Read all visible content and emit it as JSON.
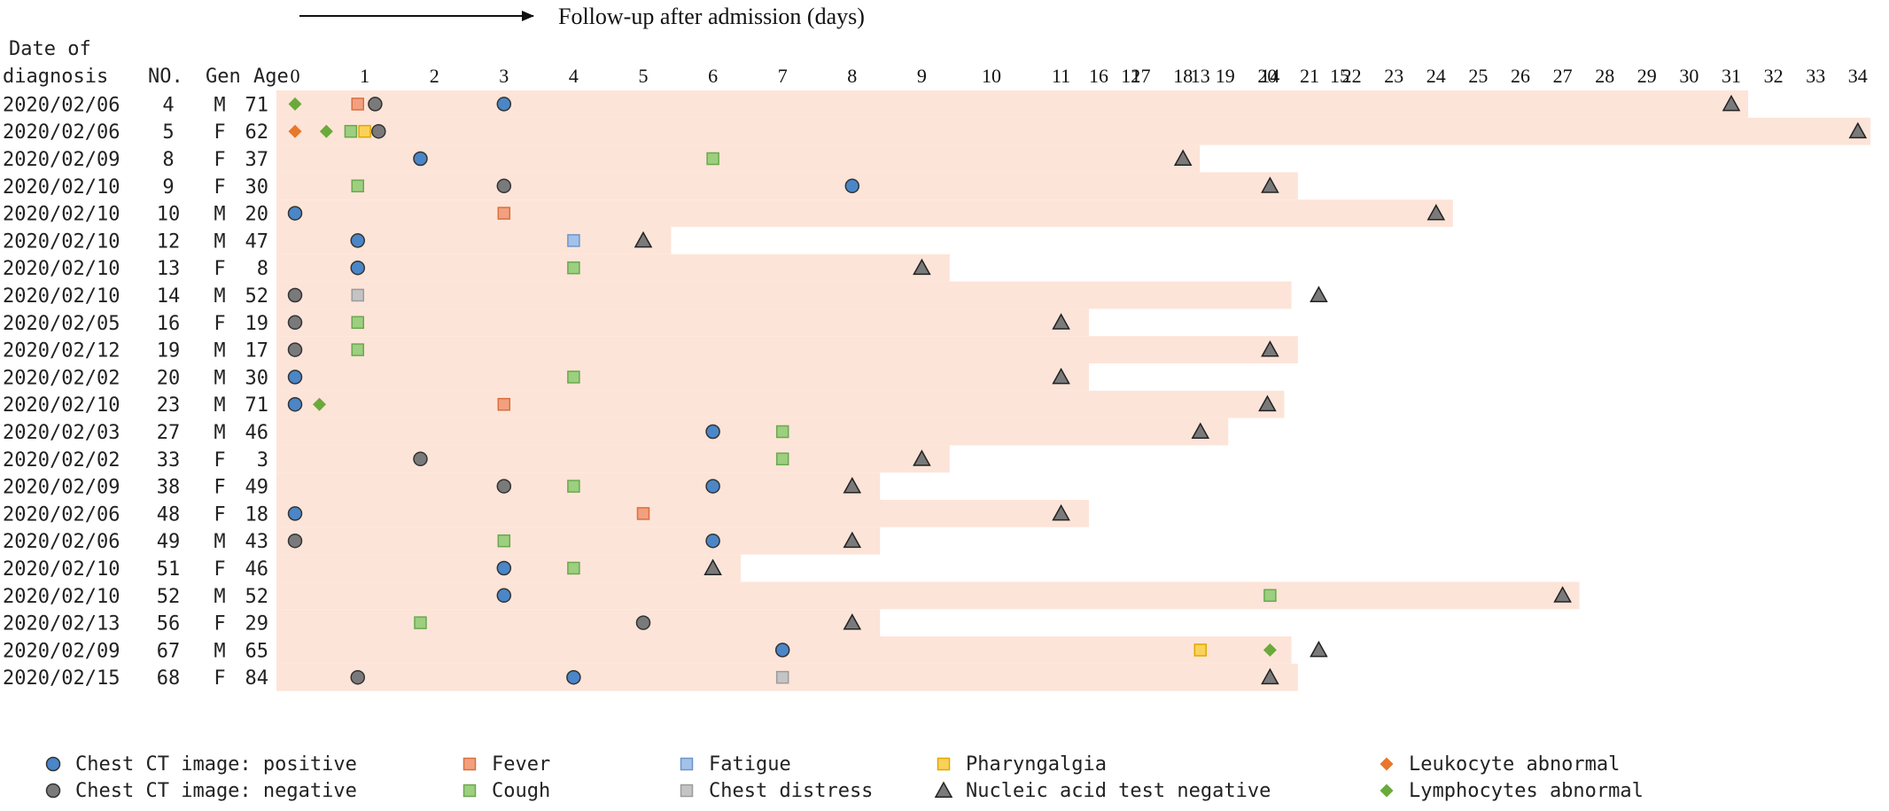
{
  "chart_data": {
    "type": "timeline",
    "title": "Follow-up after admission (days)",
    "header": {
      "date_line1": "Date of",
      "date_line2": "diagnosis",
      "no": "NO.",
      "gen": "Gen",
      "age": "Age"
    },
    "x_ticks": [
      "0",
      "1",
      "2",
      "3",
      "4",
      "5",
      "6",
      "7",
      "8",
      "9",
      "10",
      "11",
      "12",
      "13",
      "14",
      "15",
      "16",
      "17",
      "18",
      "19",
      "20",
      "21",
      "22",
      "23",
      "24",
      "25",
      "26",
      "27",
      "28",
      "29",
      "30",
      "31",
      "32",
      "33",
      "34"
    ],
    "x_range": [
      0,
      34
    ],
    "colors": {
      "band": "#fde4d8",
      "ct_positive": "#4a86c8",
      "ct_negative": "#7a7a7a",
      "fever": "#f2a07f",
      "fatigue": "#a4c2e8",
      "pharyngalgia": "#fad25a",
      "cough": "#9ccf7f",
      "chest_distress": "#c4c4c4",
      "nucleic_negative": "#7a7a7a",
      "leukocyte": "#e8762b",
      "lymphocytes": "#6aaa3a"
    },
    "patients": [
      {
        "date": "2020/02/06",
        "no": "4",
        "gen": "M",
        "age": "71",
        "end": 31.4,
        "events": [
          {
            "type": "lymphocytes",
            "day": 0
          },
          {
            "type": "fever",
            "day": 0.9
          },
          {
            "type": "ct_negative",
            "day": 1.15
          },
          {
            "type": "ct_positive",
            "day": 3
          },
          {
            "type": "nucleic_negative",
            "day": 31
          }
        ]
      },
      {
        "date": "2020/02/06",
        "no": "5",
        "gen": "F",
        "age": "62",
        "end": 34.3,
        "events": [
          {
            "type": "leukocyte",
            "day": 0
          },
          {
            "type": "lymphocytes",
            "day": 0.45
          },
          {
            "type": "cough",
            "day": 0.8
          },
          {
            "type": "pharyngalgia",
            "day": 1.0
          },
          {
            "type": "ct_negative",
            "day": 1.2
          },
          {
            "type": "nucleic_negative",
            "day": 34
          }
        ]
      },
      {
        "date": "2020/02/09",
        "no": "8",
        "gen": "F",
        "age": "37",
        "end": 18.4,
        "events": [
          {
            "type": "ct_positive",
            "day": 1.8
          },
          {
            "type": "cough",
            "day": 6
          },
          {
            "type": "nucleic_negative",
            "day": 18
          }
        ]
      },
      {
        "date": "2020/02/10",
        "no": "9",
        "gen": "F",
        "age": "30",
        "end": 14.4,
        "events": [
          {
            "type": "cough",
            "day": 0.9
          },
          {
            "type": "ct_negative",
            "day": 3
          },
          {
            "type": "ct_positive",
            "day": 8
          },
          {
            "type": "nucleic_negative",
            "day": 14
          }
        ]
      },
      {
        "date": "2020/02/10",
        "no": "10",
        "gen": "M",
        "age": "20",
        "end": 24.4,
        "events": [
          {
            "type": "ct_positive",
            "day": 0
          },
          {
            "type": "fever",
            "day": 3
          },
          {
            "type": "nucleic_negative",
            "day": 24
          }
        ]
      },
      {
        "date": "2020/02/10",
        "no": "12",
        "gen": "M",
        "age": "47",
        "end": 5.4,
        "events": [
          {
            "type": "ct_positive",
            "day": 0.9
          },
          {
            "type": "fatigue",
            "day": 4
          },
          {
            "type": "nucleic_negative",
            "day": 5
          }
        ]
      },
      {
        "date": "2020/02/10",
        "no": "13",
        "gen": "F",
        "age": "8",
        "end": 9.4,
        "events": [
          {
            "type": "ct_positive",
            "day": 0.9
          },
          {
            "type": "cough",
            "day": 4
          },
          {
            "type": "nucleic_negative",
            "day": 9
          }
        ]
      },
      {
        "date": "2020/02/10",
        "no": "14",
        "gen": "M",
        "age": "52",
        "end": 15.2,
        "events": [
          {
            "type": "ct_negative",
            "day": 0
          },
          {
            "type": "chest_distress",
            "day": 0.9
          },
          {
            "type": "nucleic_negative",
            "day": 14.7
          }
        ]
      },
      {
        "date": "2020/02/05",
        "no": "16",
        "gen": "F",
        "age": "19",
        "end": 11.4,
        "events": [
          {
            "type": "ct_negative",
            "day": 0
          },
          {
            "type": "cough",
            "day": 0.9
          },
          {
            "type": "nucleic_negative",
            "day": 11
          }
        ]
      },
      {
        "date": "2020/02/12",
        "no": "19",
        "gen": "M",
        "age": "17",
        "end": 14.4,
        "events": [
          {
            "type": "ct_negative",
            "day": 0
          },
          {
            "type": "cough",
            "day": 0.9
          },
          {
            "type": "nucleic_negative",
            "day": 14
          }
        ]
      },
      {
        "date": "2020/02/02",
        "no": "20",
        "gen": "M",
        "age": "30",
        "end": 11.4,
        "events": [
          {
            "type": "ct_positive",
            "day": 0
          },
          {
            "type": "cough",
            "day": 4
          },
          {
            "type": "nucleic_negative",
            "day": 11
          }
        ]
      },
      {
        "date": "2020/02/10",
        "no": "23",
        "gen": "M",
        "age": "71",
        "end": 20.4,
        "events": [
          {
            "type": "ct_positive",
            "day": 0
          },
          {
            "type": "lymphocytes",
            "day": 0.35
          },
          {
            "type": "fever",
            "day": 3
          },
          {
            "type": "nucleic_negative",
            "day": 20
          }
        ]
      },
      {
        "date": "2020/02/03",
        "no": "27",
        "gen": "M",
        "age": "46",
        "end": 13.4,
        "events": [
          {
            "type": "ct_positive",
            "day": 6
          },
          {
            "type": "cough",
            "day": 7
          },
          {
            "type": "nucleic_negative",
            "day": 13
          }
        ]
      },
      {
        "date": "2020/02/02",
        "no": "33",
        "gen": "F",
        "age": "3",
        "end": 9.4,
        "events": [
          {
            "type": "ct_negative",
            "day": 1.8
          },
          {
            "type": "cough",
            "day": 7
          },
          {
            "type": "nucleic_negative",
            "day": 9
          }
        ]
      },
      {
        "date": "2020/02/09",
        "no": "38",
        "gen": "F",
        "age": "49",
        "end": 8.4,
        "events": [
          {
            "type": "ct_negative",
            "day": 3
          },
          {
            "type": "cough",
            "day": 4
          },
          {
            "type": "ct_positive",
            "day": 6
          },
          {
            "type": "nucleic_negative",
            "day": 8
          }
        ]
      },
      {
        "date": "2020/02/06",
        "no": "48",
        "gen": "F",
        "age": "18",
        "end": 11.4,
        "events": [
          {
            "type": "ct_positive",
            "day": 0
          },
          {
            "type": "fever",
            "day": 5
          },
          {
            "type": "nucleic_negative",
            "day": 11
          }
        ]
      },
      {
        "date": "2020/02/06",
        "no": "49",
        "gen": "M",
        "age": "43",
        "end": 8.4,
        "events": [
          {
            "type": "ct_negative",
            "day": 0
          },
          {
            "type": "cough",
            "day": 3
          },
          {
            "type": "ct_positive",
            "day": 6
          },
          {
            "type": "nucleic_negative",
            "day": 8
          }
        ]
      },
      {
        "date": "2020/02/10",
        "no": "51",
        "gen": "F",
        "age": "46",
        "end": 6.4,
        "events": [
          {
            "type": "ct_positive",
            "day": 3
          },
          {
            "type": "cough",
            "day": 4
          },
          {
            "type": "nucleic_negative",
            "day": 6
          }
        ]
      },
      {
        "date": "2020/02/10",
        "no": "52",
        "gen": "M",
        "age": "52",
        "end": 27.4,
        "events": [
          {
            "type": "ct_positive",
            "day": 3
          },
          {
            "type": "cough",
            "day": 14
          },
          {
            "type": "nucleic_negative",
            "day": 27
          }
        ]
      },
      {
        "date": "2020/02/13",
        "no": "56",
        "gen": "F",
        "age": "29",
        "end": 8.4,
        "events": [
          {
            "type": "cough",
            "day": 1.8
          },
          {
            "type": "ct_negative",
            "day": 5
          },
          {
            "type": "nucleic_negative",
            "day": 8
          }
        ]
      },
      {
        "date": "2020/02/09",
        "no": "67",
        "gen": "M",
        "age": "65",
        "end": 15.2,
        "events": [
          {
            "type": "ct_positive",
            "day": 7
          },
          {
            "type": "pharyngalgia",
            "day": 13
          },
          {
            "type": "lymphocytes",
            "day": 14
          },
          {
            "type": "nucleic_negative",
            "day": 14.7
          }
        ]
      },
      {
        "date": "2020/02/15",
        "no": "68",
        "gen": "F",
        "age": "84",
        "end": 14.4,
        "events": [
          {
            "type": "ct_negative",
            "day": 0.9
          },
          {
            "type": "ct_positive",
            "day": 4
          },
          {
            "type": "chest_distress",
            "day": 7
          },
          {
            "type": "nucleic_negative",
            "day": 14
          }
        ]
      }
    ],
    "legend": [
      {
        "type": "ct_positive",
        "label": "Chest CT image: positive"
      },
      {
        "type": "fever",
        "label": "Fever"
      },
      {
        "type": "fatigue",
        "label": "Fatigue"
      },
      {
        "type": "pharyngalgia",
        "label": "Pharyngalgia"
      },
      {
        "type": "leukocyte",
        "label": "Leukocyte abnormal"
      },
      {
        "type": "ct_negative",
        "label": "Chest CT image: negative"
      },
      {
        "type": "cough",
        "label": "Cough"
      },
      {
        "type": "chest_distress",
        "label": "Chest distress"
      },
      {
        "type": "nucleic_negative",
        "label": "Nucleic acid test negative"
      },
      {
        "type": "lymphocytes",
        "label": "Lymphocytes abnormal"
      }
    ],
    "legend_position": "bottom"
  }
}
